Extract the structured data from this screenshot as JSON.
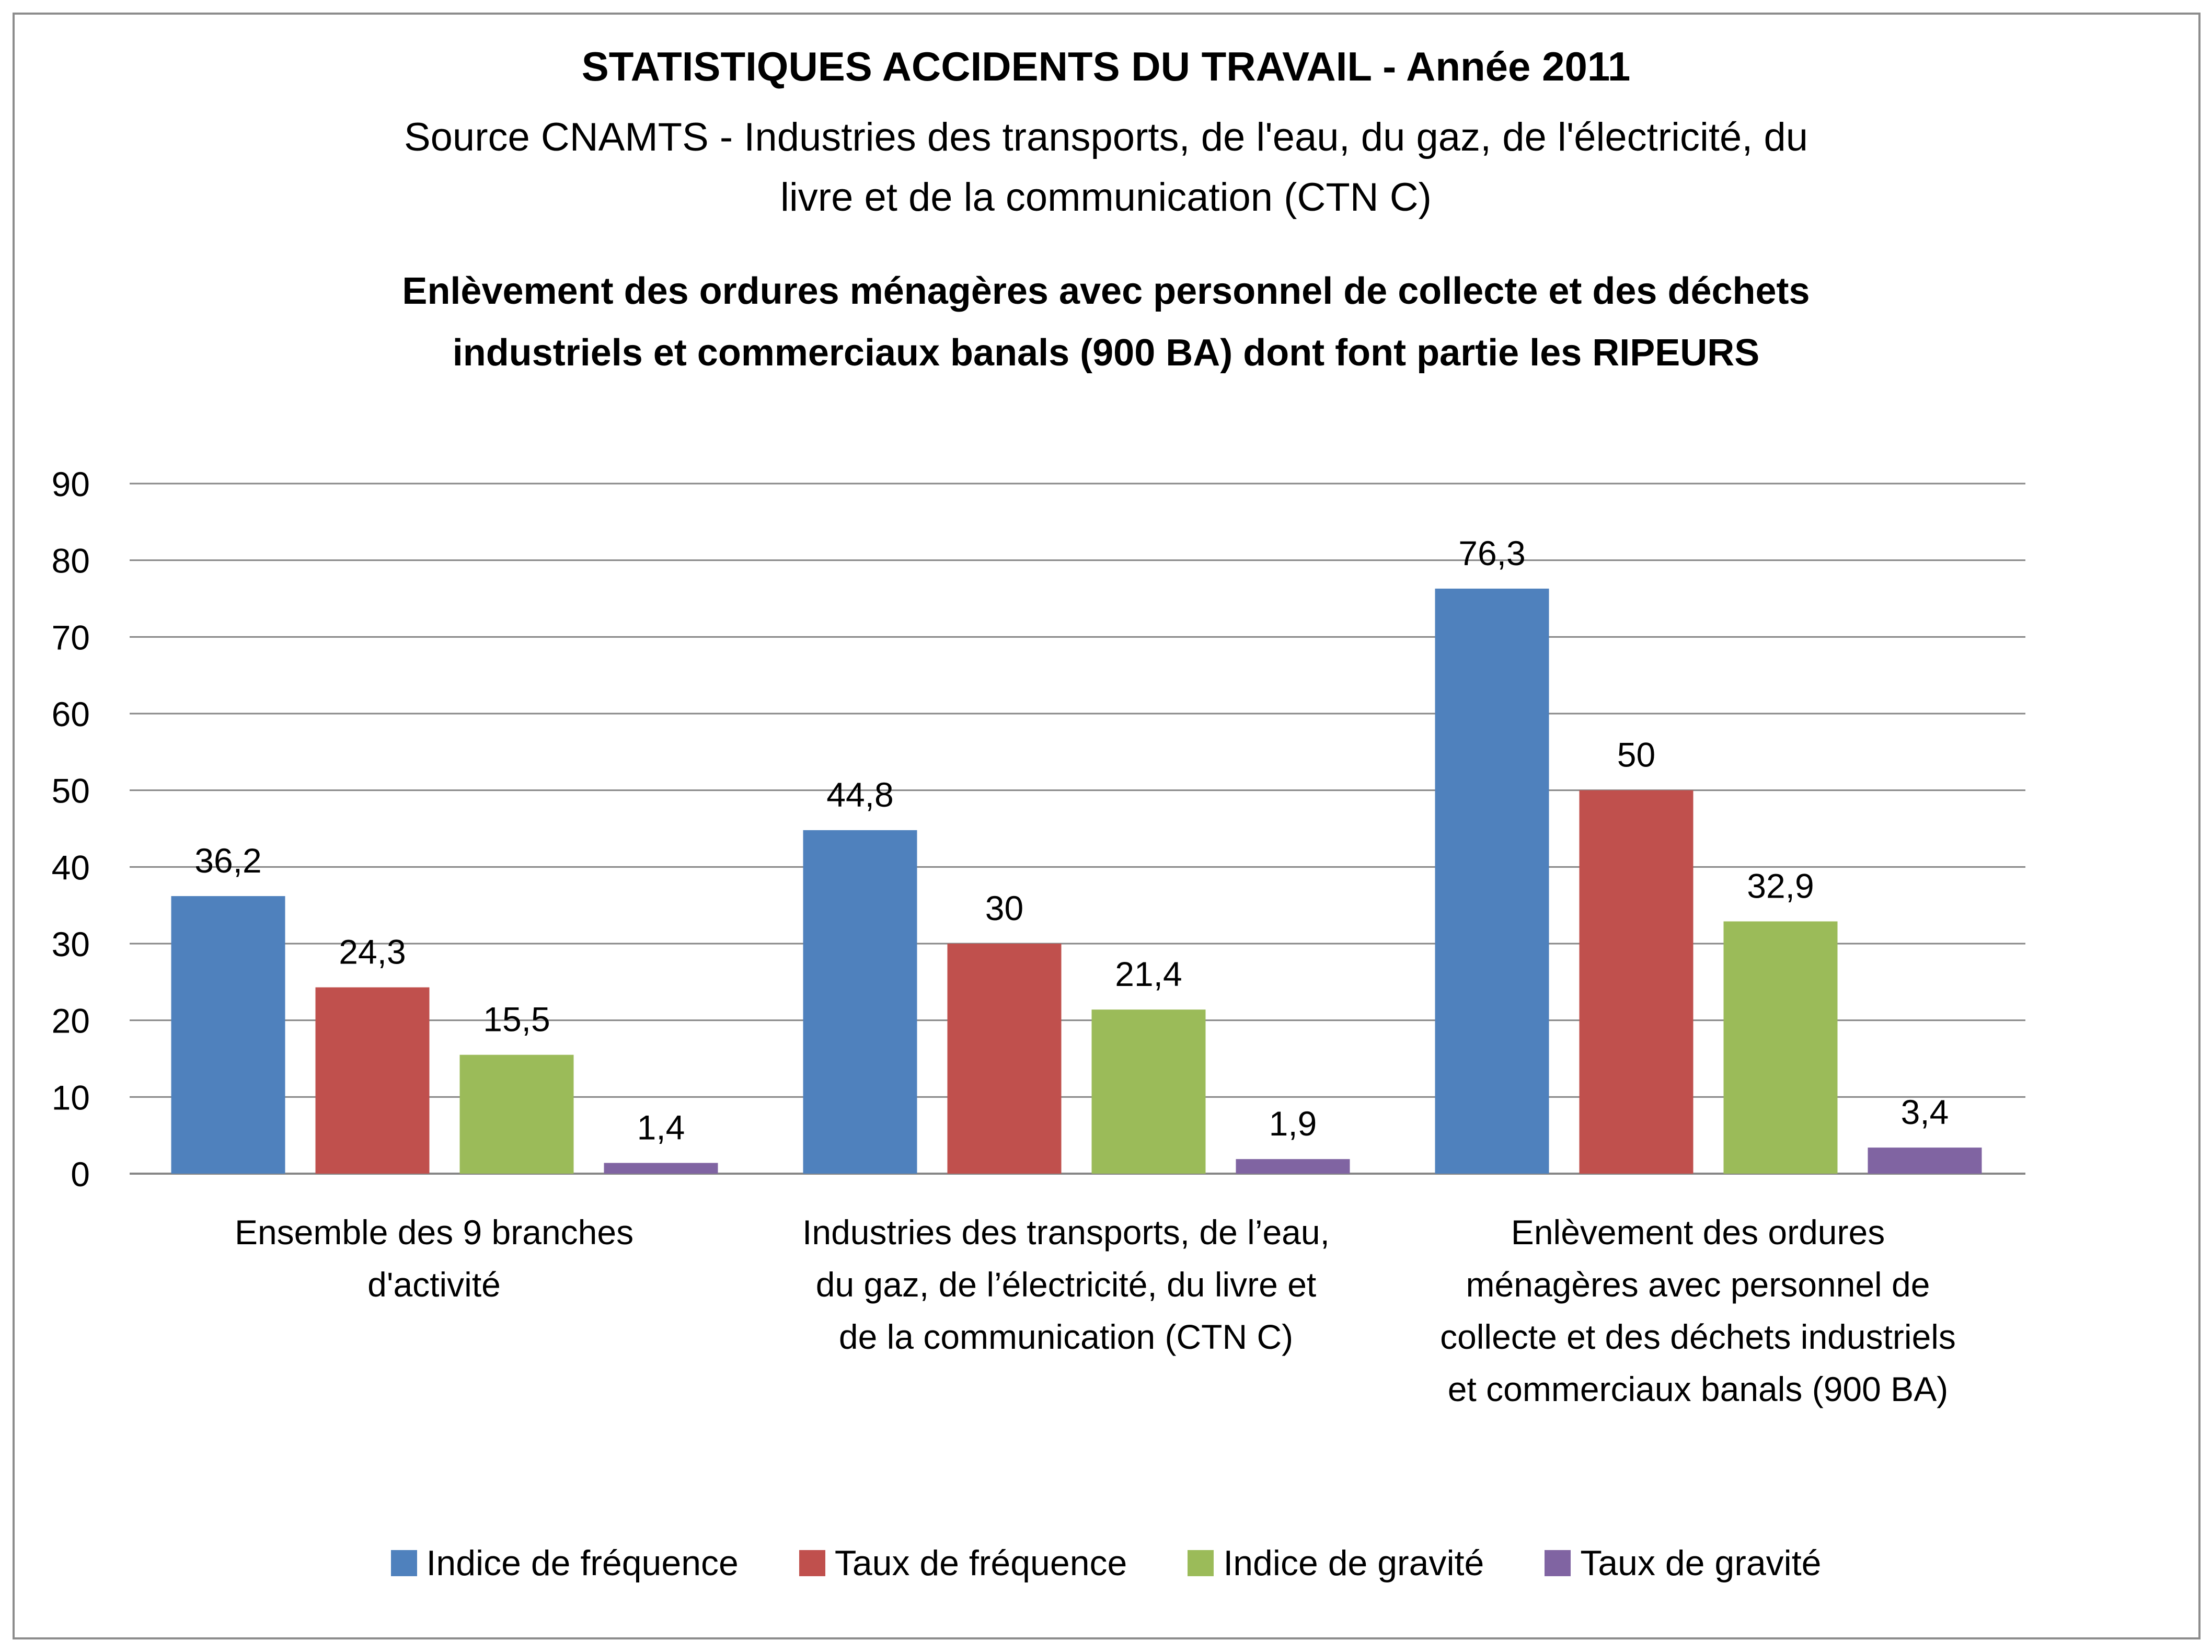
{
  "header": {
    "title": "STATISTIQUES ACCIDENTS DU TRAVAIL - Année 2011",
    "subtitle_lines": [
      "Source CNAMTS - Industries des transports, de l'eau, du gaz, de l'électricité, du",
      "livre et de la communication (CTN C)"
    ],
    "chart_title_lines": [
      "Enlèvement des ordures ménagères avec personnel de collecte et des déchets",
      "industriels et commerciaux banals (900 BA) dont font partie les RIPEURS"
    ]
  },
  "chart_data": {
    "type": "bar",
    "title": "STATISTIQUES ACCIDENTS DU TRAVAIL - Année 2011",
    "categories": [
      [
        "Ensemble des 9 branches",
        "d'activité"
      ],
      [
        "Industries des transports, de l’eau,",
        "du gaz, de l’électricité, du livre et",
        "de la communication (CTN C)"
      ],
      [
        "Enlèvement des ordures",
        "ménagères avec personnel de",
        "collecte et des déchets industriels",
        "et commerciaux banals (900 BA)"
      ]
    ],
    "series": [
      {
        "name": "Indice de fréquence",
        "color": "#4f81bd",
        "values": [
          36.2,
          44.8,
          76.3
        ],
        "labels": [
          "36,2",
          "44,8",
          "76,3"
        ]
      },
      {
        "name": "Taux de fréquence",
        "color": "#c0504d",
        "values": [
          24.3,
          30,
          50
        ],
        "labels": [
          "24,3",
          "30",
          "50"
        ]
      },
      {
        "name": "Indice de gravité",
        "color": "#9bbb59",
        "values": [
          15.5,
          21.4,
          32.9
        ],
        "labels": [
          "15,5",
          "21,4",
          "32,9"
        ]
      },
      {
        "name": "Taux de gravité",
        "color": "#8064a2",
        "values": [
          1.4,
          1.9,
          3.4
        ],
        "labels": [
          "1,4",
          "1,9",
          "3,4"
        ]
      }
    ],
    "ylim": [
      0,
      90
    ],
    "yticks": [
      "0",
      "10",
      "20",
      "30",
      "40",
      "50",
      "60",
      "70",
      "80",
      "90"
    ],
    "grid": true,
    "legend_position": "bottom"
  }
}
